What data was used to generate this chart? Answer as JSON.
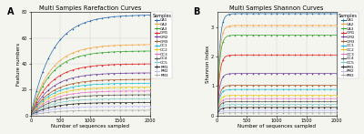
{
  "title_A": "Multi Samples Rarefaction Curves",
  "title_B": "Multi Samples Shannon Curves",
  "xlabel": "Number of sequences sampled",
  "ylabel_A": "Feature numbers",
  "ylabel_B": "Shannon Index",
  "xlim": [
    0,
    2000
  ],
  "ylim_A": [
    0,
    80
  ],
  "ylim_B": [
    0,
    3.5
  ],
  "samples": [
    "CA1",
    "CA2",
    "CA3",
    "GM1",
    "GM2",
    "GM3",
    "OC1",
    "OC2",
    "OC3",
    "OC4",
    "OC5",
    "PM1",
    "PM2",
    "PM3"
  ],
  "colors": [
    "#2166ac",
    "#f4a442",
    "#33a02c",
    "#e31a1c",
    "#6a3d9a",
    "#a65628",
    "#17becf",
    "#e6c619",
    "#e377c2",
    "#555555",
    "#7ec8c8",
    "#222222",
    "#bbbbff",
    "#aaaaaa"
  ],
  "rarefaction_plateau": [
    78,
    55,
    50,
    40,
    33,
    28,
    25,
    22,
    19,
    16,
    13,
    10,
    7,
    4
  ],
  "rarefaction_rate": [
    0.0028,
    0.003,
    0.003,
    0.003,
    0.003,
    0.003,
    0.003,
    0.003,
    0.003,
    0.003,
    0.003,
    0.003,
    0.003,
    0.003
  ],
  "shannon_plateau": [
    3.45,
    3.05,
    2.72,
    2.05,
    1.42,
    1.02,
    0.88,
    0.68,
    0.57,
    0.47,
    0.37,
    0.27,
    0.17,
    0.09
  ],
  "shannon_rate": [
    0.025,
    0.025,
    0.025,
    0.025,
    0.025,
    0.025,
    0.025,
    0.025,
    0.025,
    0.025,
    0.025,
    0.025,
    0.025,
    0.025
  ],
  "panel_label_A": "A",
  "panel_label_B": "B",
  "bg_color": "#f5f5f0",
  "plot_bg": "#f5f5f0",
  "grid_color": "#cccccc"
}
